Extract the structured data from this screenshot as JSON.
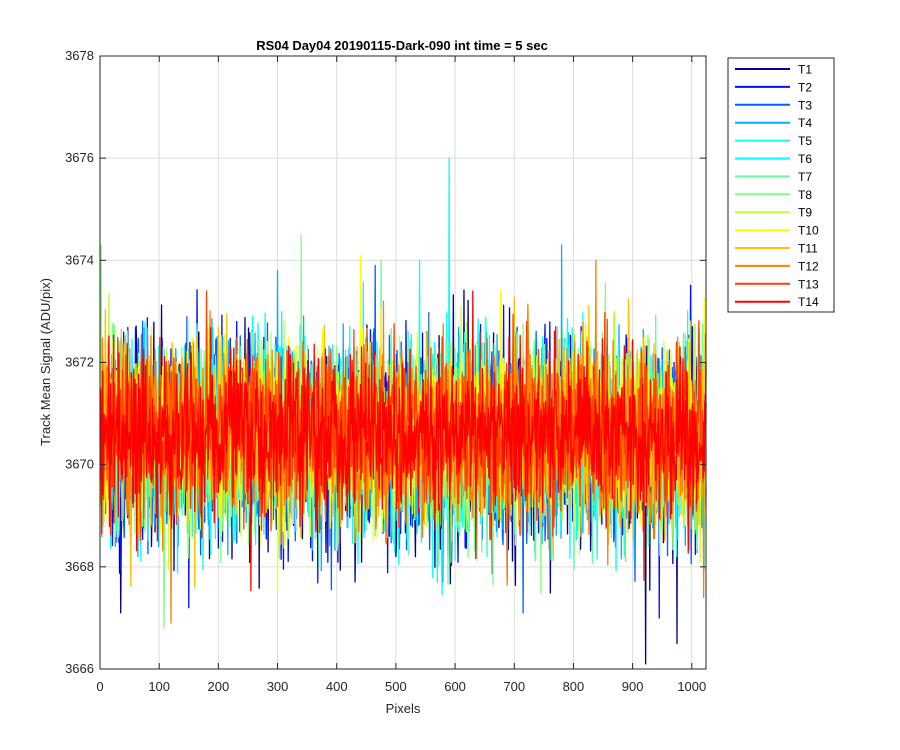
{
  "chart_data": {
    "type": "line",
    "title": "RS04 Day04 20190115-Dark-090 int time = 5 sec",
    "xlabel": "Pixels",
    "ylabel": "Track Mean Signal (ADU/pix)",
    "xlim": [
      0,
      1024
    ],
    "ylim": [
      3666,
      3678
    ],
    "grid": true,
    "legend_location": "outside-top-right",
    "x_ticks": [
      0,
      100,
      200,
      300,
      400,
      500,
      600,
      700,
      800,
      900,
      1000
    ],
    "y_ticks": [
      3666,
      3668,
      3670,
      3672,
      3674,
      3676,
      3678
    ],
    "x_tick_labels": [
      "0",
      "100",
      "200",
      "300",
      "400",
      "500",
      "600",
      "700",
      "800",
      "900",
      "1000"
    ],
    "y_tick_labels": [
      "3666",
      "3668",
      "3670",
      "3672",
      "3674",
      "3676",
      "3678"
    ],
    "x_range": [
      1,
      1024
    ],
    "series": [
      {
        "name": "T1",
        "color": "#00008f",
        "mean": 3670.4,
        "noise": 1.0,
        "seed": 11,
        "spikes": [
          [
            922,
            3666.1
          ],
          [
            35,
            3667.1
          ],
          [
            975,
            3666.5
          ]
        ]
      },
      {
        "name": "T2",
        "color": "#0010ff",
        "mean": 3670.5,
        "noise": 0.95,
        "seed": 23,
        "spikes": [
          [
            945,
            3667.0
          ],
          [
            150,
            3667.2
          ]
        ]
      },
      {
        "name": "T3",
        "color": "#0060ff",
        "mean": 3670.5,
        "noise": 0.95,
        "seed": 37,
        "spikes": [
          [
            465,
            3673.9
          ],
          [
            715,
            3667.1
          ]
        ]
      },
      {
        "name": "T4",
        "color": "#00b0ff",
        "mean": 3670.5,
        "noise": 0.9,
        "seed": 41,
        "spikes": [
          [
            780,
            3674.3
          ],
          [
            300,
            3673.8
          ]
        ]
      },
      {
        "name": "T5",
        "color": "#10ffef",
        "mean": 3670.5,
        "noise": 0.9,
        "seed": 53,
        "spikes": [
          [
            540,
            3674.0
          ]
        ]
      },
      {
        "name": "T6",
        "color": "#00ffff",
        "mean": 3670.5,
        "noise": 0.9,
        "seed": 67,
        "spikes": [
          [
            590,
            3676.0
          ]
        ]
      },
      {
        "name": "T7",
        "color": "#60ffa0",
        "mean": 3670.5,
        "noise": 0.9,
        "seed": 71,
        "spikes": [
          [
            475,
            3674.0
          ]
        ]
      },
      {
        "name": "T8",
        "color": "#80ff80",
        "mean": 3670.5,
        "noise": 0.9,
        "seed": 83,
        "spikes": [
          [
            340,
            3674.5
          ],
          [
            2,
            3674.3
          ],
          [
            108,
            3666.8
          ]
        ]
      },
      {
        "name": "T9",
        "color": "#c0ff40",
        "mean": 3670.6,
        "noise": 0.9,
        "seed": 97,
        "spikes": [
          [
            870,
            3673.0
          ]
        ]
      },
      {
        "name": "T10",
        "color": "#ffff00",
        "mean": 3670.7,
        "noise": 0.85,
        "seed": 101,
        "spikes": [
          [
            300,
            3667.5
          ],
          [
            440,
            3674.1
          ]
        ]
      },
      {
        "name": "T11",
        "color": "#ffc000",
        "mean": 3670.6,
        "noise": 0.85,
        "seed": 113,
        "spikes": [
          [
            160,
            3667.6
          ]
        ]
      },
      {
        "name": "T12",
        "color": "#ff8000",
        "mean": 3670.6,
        "noise": 0.85,
        "seed": 127,
        "spikes": [
          [
            838,
            3674.0
          ],
          [
            120,
            3666.9
          ],
          [
            1020,
            3667.4
          ]
        ]
      },
      {
        "name": "T13",
        "color": "#ff4000",
        "mean": 3670.6,
        "noise": 0.8,
        "seed": 131,
        "spikes": [
          [
            180,
            3673.4
          ]
        ]
      },
      {
        "name": "T14",
        "color": "#ff0000",
        "mean": 3670.6,
        "noise": 0.75,
        "seed": 139,
        "spikes": [
          [
            630,
            3673.4
          ]
        ]
      }
    ]
  }
}
